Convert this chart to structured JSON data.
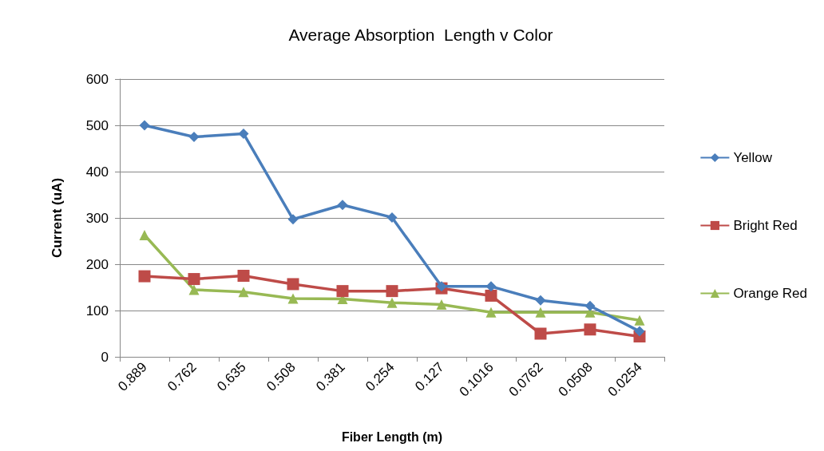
{
  "chart_data": {
    "type": "line",
    "title": "Average Absorption  Length v Color",
    "xlabel": "Fiber Length (m)",
    "ylabel": "Current (uA)",
    "categories": [
      "0.889",
      "0.762",
      "0.635",
      "0.508",
      "0.381",
      "0.254",
      "0.127",
      "0.1016",
      "0.0762",
      "0.0508",
      "0.0254"
    ],
    "series": [
      {
        "name": "Yellow",
        "color": "#4a7ebb",
        "marker": "diamond",
        "values": [
          500,
          475,
          482,
          297,
          328,
          301,
          152,
          152,
          122,
          110,
          55
        ]
      },
      {
        "name": "Bright Red",
        "color": "#be4b48",
        "marker": "square",
        "values": [
          174,
          168,
          175,
          157,
          142,
          142,
          148,
          132,
          50,
          59,
          44
        ]
      },
      {
        "name": "Orange Red",
        "color": "#98b954",
        "marker": "triangle",
        "values": [
          263,
          145,
          140,
          126,
          125,
          117,
          113,
          96,
          96,
          96,
          79
        ]
      }
    ],
    "ylim": [
      0,
      600
    ],
    "yticks": [
      0,
      100,
      200,
      300,
      400,
      500,
      600
    ],
    "grid": "y",
    "legend": "right",
    "line_style": "solid"
  }
}
